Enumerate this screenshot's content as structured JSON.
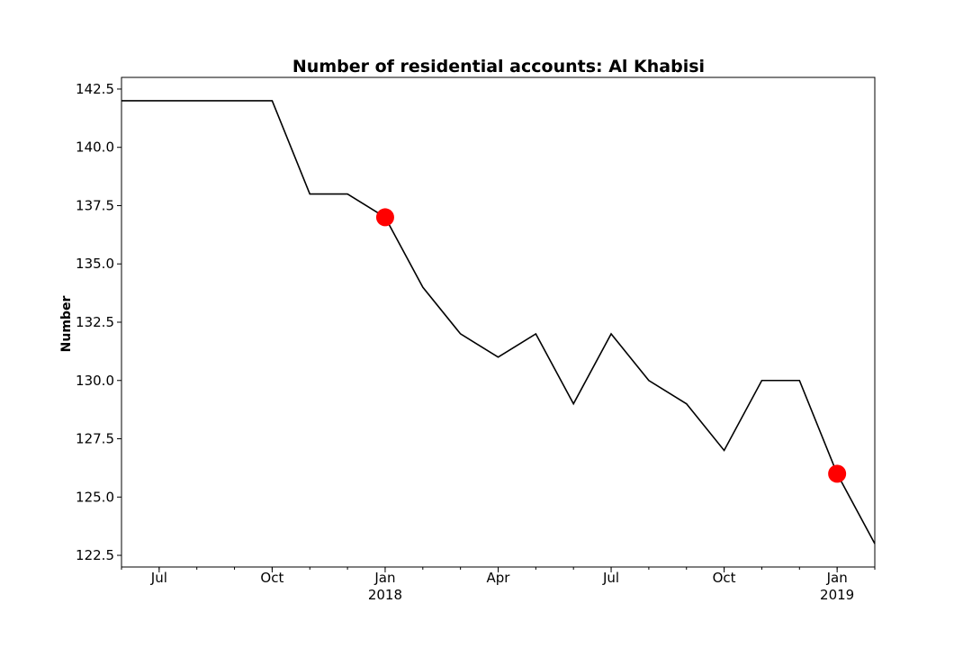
{
  "chart_data": {
    "type": "line",
    "title": "Number of residential accounts: Al Khabisi",
    "xlabel": "",
    "ylabel": "Number",
    "ylim": [
      122,
      143
    ],
    "grid": false,
    "legend": "none",
    "colors": {
      "line": "#000000",
      "marker": "#ff0000"
    },
    "x": [
      "2017-06",
      "2017-07",
      "2017-08",
      "2017-09",
      "2017-10",
      "2017-11",
      "2017-12",
      "2018-01",
      "2018-02",
      "2018-03",
      "2018-04",
      "2018-05",
      "2018-06",
      "2018-07",
      "2018-08",
      "2018-09",
      "2018-10",
      "2018-11",
      "2018-12",
      "2019-01",
      "2019-02"
    ],
    "series": [
      {
        "values": [
          142,
          142,
          142,
          142,
          142,
          138,
          138,
          137,
          134,
          132,
          131,
          132,
          129,
          132,
          130,
          129,
          127,
          130,
          130,
          126,
          123
        ]
      }
    ],
    "highlighted_points": [
      {
        "x": "2018-01",
        "y": 137
      },
      {
        "x": "2019-01",
        "y": 126
      }
    ],
    "y_ticks": [
      {
        "value": 122.5,
        "label": "122.5"
      },
      {
        "value": 125.0,
        "label": "125.0"
      },
      {
        "value": 127.5,
        "label": "127.5"
      },
      {
        "value": 130.0,
        "label": "130.0"
      },
      {
        "value": 132.5,
        "label": "132.5"
      },
      {
        "value": 135.0,
        "label": "135.0"
      },
      {
        "value": 137.5,
        "label": "137.5"
      },
      {
        "value": 140.0,
        "label": "140.0"
      },
      {
        "value": 142.5,
        "label": "142.5"
      }
    ],
    "x_ticks_major": [
      {
        "x": "2017-07",
        "label": "Jul",
        "sublabel": ""
      },
      {
        "x": "2017-10",
        "label": "Oct",
        "sublabel": ""
      },
      {
        "x": "2018-01",
        "label": "Jan",
        "sublabel": "2018"
      },
      {
        "x": "2018-04",
        "label": "Apr",
        "sublabel": ""
      },
      {
        "x": "2018-07",
        "label": "Jul",
        "sublabel": ""
      },
      {
        "x": "2018-10",
        "label": "Oct",
        "sublabel": ""
      },
      {
        "x": "2019-01",
        "label": "Jan",
        "sublabel": "2019"
      }
    ]
  }
}
